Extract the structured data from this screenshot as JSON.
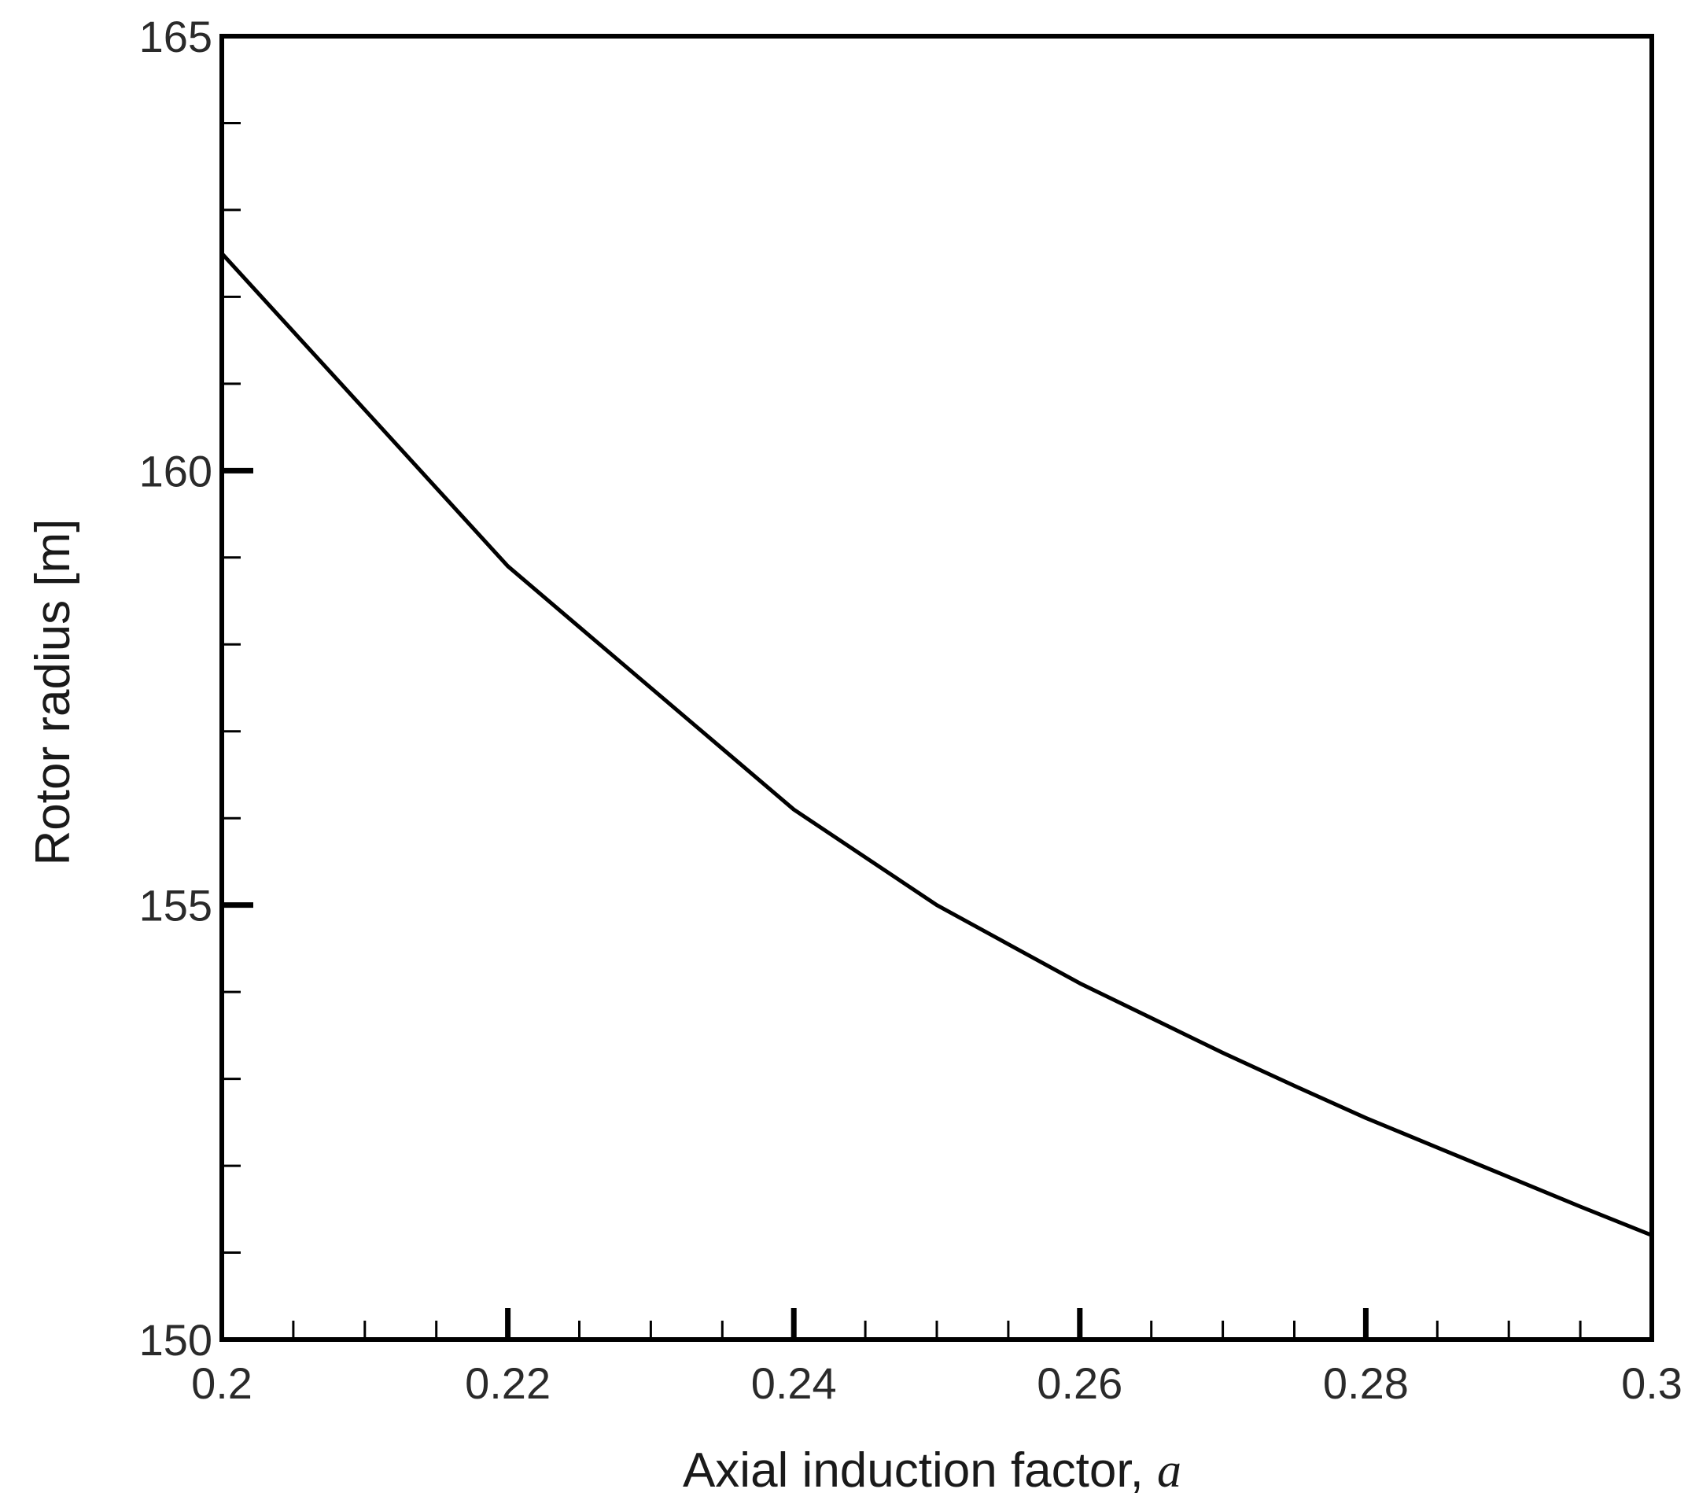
{
  "chart_data": {
    "type": "line",
    "title": "",
    "xlabel": "Axial induction factor, ",
    "xlabel_symbol": "a",
    "ylabel": "Rotor radius [m]",
    "xlim": [
      0.2,
      0.3
    ],
    "ylim": [
      150,
      165
    ],
    "x_ticks": [
      "0.2",
      "0.22",
      "0.24",
      "0.26",
      "0.28",
      "0.3"
    ],
    "y_ticks": [
      "150",
      "155",
      "160",
      "165"
    ],
    "x_minor_step": 0.005,
    "y_minor_step": 1,
    "grid": false,
    "series": [
      {
        "x": [
          0.2,
          0.205,
          0.21,
          0.215,
          0.22,
          0.225,
          0.23,
          0.235,
          0.24,
          0.245,
          0.25,
          0.255,
          0.26,
          0.265,
          0.27,
          0.275,
          0.28,
          0.285,
          0.29,
          0.295,
          0.3
        ],
        "values": [
          162.5,
          161.6,
          160.7,
          159.8,
          158.9,
          158.2,
          157.5,
          156.8,
          156.1,
          155.55,
          155.0,
          154.55,
          154.1,
          153.7,
          153.3,
          152.92,
          152.55,
          152.21,
          151.87,
          151.53,
          151.2
        ],
        "color": "#000000"
      }
    ]
  }
}
